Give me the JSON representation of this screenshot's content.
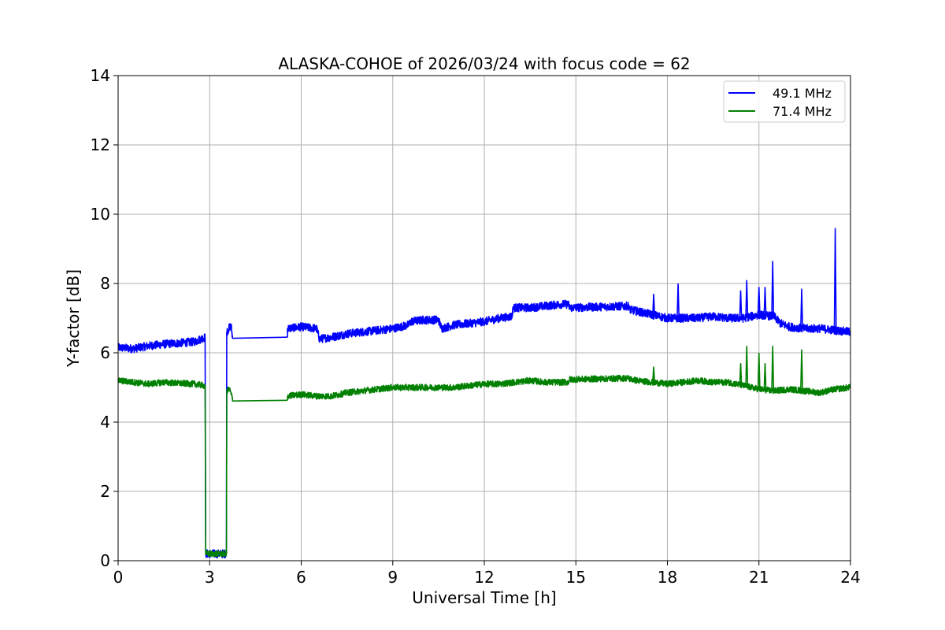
{
  "chart_data": {
    "type": "line",
    "title": "ALASKA-COHOE of 2026/03/24 with focus code = 62",
    "xlabel": "Universal Time [h]",
    "ylabel": "Y-factor [dB]",
    "xlim": [
      0,
      24
    ],
    "ylim": [
      0,
      14
    ],
    "xticks": [
      0,
      3,
      6,
      9,
      12,
      15,
      18,
      21,
      24
    ],
    "yticks": [
      0,
      2,
      4,
      6,
      8,
      10,
      12,
      14
    ],
    "grid": true,
    "legend_position": "top-right",
    "series": [
      {
        "name": "49.1 MHz",
        "color": "#0000ff",
        "noise": 0.12,
        "segments": [
          [
            [
              0.0,
              6.15
            ],
            [
              0.5,
              6.12
            ],
            [
              1.0,
              6.2
            ],
            [
              1.5,
              6.25
            ],
            [
              2.0,
              6.28
            ],
            [
              2.5,
              6.32
            ],
            [
              2.85,
              6.45
            ]
          ],
          [
            [
              2.87,
              0.2
            ],
            [
              3.55,
              0.2
            ]
          ],
          [
            [
              3.56,
              6.6
            ],
            [
              3.7,
              6.8
            ],
            [
              3.75,
              6.42
            ],
            [
              5.55,
              6.45
            ]
          ],
          [
            [
              5.55,
              6.7
            ],
            [
              6.0,
              6.75
            ],
            [
              6.5,
              6.7
            ],
            [
              6.6,
              6.4
            ],
            [
              7.0,
              6.45
            ],
            [
              7.5,
              6.55
            ],
            [
              8.0,
              6.6
            ],
            [
              8.5,
              6.65
            ],
            [
              9.0,
              6.7
            ],
            [
              9.5,
              6.8
            ],
            [
              9.6,
              6.9
            ],
            [
              10.0,
              6.95
            ],
            [
              10.5,
              6.95
            ],
            [
              10.6,
              6.7
            ],
            [
              11.0,
              6.8
            ],
            [
              11.5,
              6.85
            ],
            [
              12.0,
              6.9
            ],
            [
              12.5,
              7.0
            ],
            [
              12.9,
              7.05
            ],
            [
              12.95,
              7.3
            ],
            [
              13.5,
              7.3
            ],
            [
              14.0,
              7.35
            ],
            [
              14.5,
              7.4
            ],
            [
              14.75,
              7.4
            ],
            [
              14.8,
              7.3
            ],
            [
              16.75,
              7.35
            ]
          ],
          [
            [
              16.75,
              7.25
            ],
            [
              17.0,
              7.2
            ],
            [
              17.5,
              7.1
            ],
            [
              18.0,
              7.0
            ],
            [
              18.5,
              7.0
            ],
            [
              19.0,
              7.0
            ],
            [
              19.5,
              7.05
            ],
            [
              20.0,
              7.0
            ],
            [
              20.5,
              7.0
            ],
            [
              21.0,
              7.1
            ],
            [
              21.5,
              7.05
            ],
            [
              21.7,
              6.85
            ],
            [
              22.0,
              6.75
            ],
            [
              22.5,
              6.7
            ],
            [
              23.0,
              6.7
            ],
            [
              23.5,
              6.65
            ],
            [
              24.0,
              6.6
            ]
          ]
        ],
        "spikes": [
          [
            17.55,
            7.7
          ],
          [
            18.35,
            8.0
          ],
          [
            20.4,
            7.8
          ],
          [
            20.6,
            8.1
          ],
          [
            21.0,
            7.9
          ],
          [
            21.2,
            7.9
          ],
          [
            21.45,
            8.65
          ],
          [
            22.4,
            7.85
          ],
          [
            23.5,
            9.6
          ]
        ]
      },
      {
        "name": "71.4 MHz",
        "color": "#008000",
        "noise": 0.09,
        "segments": [
          [
            [
              0.0,
              5.2
            ],
            [
              0.5,
              5.15
            ],
            [
              1.0,
              5.1
            ],
            [
              1.5,
              5.15
            ],
            [
              2.0,
              5.12
            ],
            [
              2.5,
              5.1
            ],
            [
              2.85,
              5.05
            ]
          ],
          [
            [
              2.87,
              0.2
            ],
            [
              3.55,
              0.2
            ]
          ],
          [
            [
              3.56,
              4.9
            ],
            [
              3.65,
              4.95
            ],
            [
              3.75,
              4.67
            ],
            [
              5.55,
              4.63
            ]
          ],
          [
            [
              5.55,
              4.75
            ],
            [
              6.0,
              4.8
            ],
            [
              6.5,
              4.75
            ],
            [
              7.0,
              4.75
            ],
            [
              7.5,
              4.85
            ],
            [
              8.0,
              4.9
            ],
            [
              8.5,
              4.95
            ],
            [
              9.0,
              5.0
            ],
            [
              9.5,
              5.0
            ],
            [
              10.0,
              5.0
            ],
            [
              10.5,
              5.0
            ],
            [
              11.0,
              5.0
            ],
            [
              11.5,
              5.05
            ],
            [
              12.0,
              5.1
            ],
            [
              12.5,
              5.1
            ],
            [
              13.0,
              5.15
            ],
            [
              13.5,
              5.2
            ],
            [
              14.0,
              5.15
            ],
            [
              14.75,
              5.15
            ],
            [
              14.8,
              5.23
            ],
            [
              16.75,
              5.27
            ]
          ],
          [
            [
              16.75,
              5.25
            ],
            [
              17.0,
              5.2
            ],
            [
              17.5,
              5.15
            ],
            [
              18.0,
              5.1
            ],
            [
              18.5,
              5.15
            ],
            [
              19.0,
              5.2
            ],
            [
              19.5,
              5.15
            ],
            [
              20.0,
              5.15
            ],
            [
              20.5,
              5.05
            ],
            [
              21.0,
              4.95
            ],
            [
              21.5,
              4.9
            ],
            [
              22.0,
              4.95
            ],
            [
              22.5,
              4.9
            ],
            [
              23.0,
              4.85
            ],
            [
              23.5,
              4.95
            ],
            [
              24.0,
              5.0
            ]
          ]
        ],
        "spikes": [
          [
            17.55,
            5.6
          ],
          [
            20.4,
            5.7
          ],
          [
            20.6,
            6.2
          ],
          [
            21.0,
            6.0
          ],
          [
            21.2,
            5.7
          ],
          [
            21.45,
            6.2
          ],
          [
            22.4,
            6.1
          ]
        ]
      }
    ]
  }
}
